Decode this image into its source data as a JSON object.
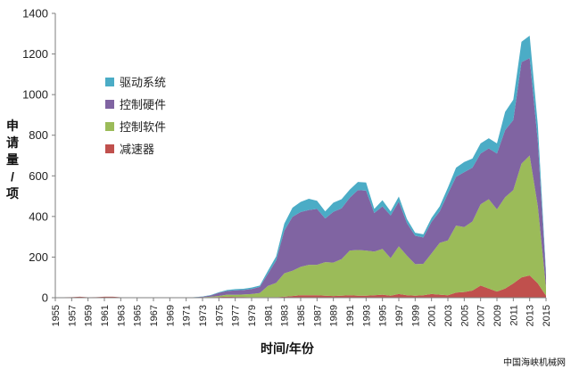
{
  "chart_data": {
    "type": "area",
    "stacked": true,
    "title": "",
    "xlabel": "时间/年份",
    "ylabel": "申请量/项",
    "ylim": [
      0,
      1400
    ],
    "yticks": [
      0,
      200,
      400,
      600,
      800,
      1000,
      1200,
      1400
    ],
    "xlim": [
      1955,
      2015
    ],
    "xticks": [
      1955,
      1957,
      1959,
      1961,
      1963,
      1965,
      1967,
      1969,
      1971,
      1973,
      1975,
      1977,
      1979,
      1981,
      1983,
      1985,
      1987,
      1989,
      1991,
      1993,
      1995,
      1997,
      1999,
      2001,
      2003,
      2005,
      2007,
      2009,
      2011,
      2013,
      2015
    ],
    "grid": false,
    "legend_position": "upper-left-inside",
    "x": [
      1955,
      1956,
      1957,
      1958,
      1959,
      1960,
      1961,
      1962,
      1963,
      1964,
      1965,
      1966,
      1967,
      1968,
      1969,
      1970,
      1971,
      1972,
      1973,
      1974,
      1975,
      1976,
      1977,
      1978,
      1979,
      1980,
      1981,
      1982,
      1983,
      1984,
      1985,
      1986,
      1987,
      1988,
      1989,
      1990,
      1991,
      1992,
      1993,
      1994,
      1995,
      1996,
      1997,
      1998,
      1999,
      2000,
      2001,
      2002,
      2003,
      2004,
      2005,
      2006,
      2007,
      2008,
      2009,
      2010,
      2011,
      2012,
      2013,
      2014,
      2015
    ],
    "series": [
      {
        "name": "减速器",
        "color": "#c0504d",
        "values": [
          0,
          2,
          3,
          5,
          2,
          3,
          5,
          5,
          2,
          1,
          1,
          1,
          1,
          1,
          1,
          0,
          0,
          1,
          2,
          3,
          4,
          5,
          4,
          4,
          3,
          3,
          3,
          3,
          5,
          8,
          12,
          12,
          12,
          10,
          8,
          10,
          12,
          10,
          10,
          12,
          15,
          10,
          18,
          12,
          10,
          12,
          18,
          15,
          12,
          25,
          28,
          35,
          60,
          45,
          30,
          45,
          70,
          100,
          110,
          70,
          10
        ]
      },
      {
        "name": "控制软件",
        "color": "#9bbb59",
        "values": [
          0,
          0,
          0,
          0,
          0,
          0,
          0,
          0,
          0,
          0,
          0,
          0,
          0,
          0,
          0,
          0,
          0,
          0,
          1,
          2,
          5,
          10,
          10,
          12,
          15,
          20,
          55,
          70,
          115,
          125,
          140,
          150,
          150,
          165,
          165,
          180,
          220,
          225,
          222,
          215,
          225,
          185,
          235,
          195,
          155,
          155,
          200,
          255,
          270,
          330,
          320,
          340,
          400,
          440,
          405,
          450,
          460,
          560,
          590,
          380,
          40
        ]
      },
      {
        "name": "控制硬件",
        "color": "#8064a2",
        "values": [
          0,
          0,
          0,
          0,
          0,
          0,
          0,
          0,
          0,
          0,
          0,
          0,
          0,
          0,
          0,
          0,
          0,
          1,
          2,
          6,
          15,
          18,
          22,
          22,
          25,
          30,
          60,
          110,
          210,
          265,
          270,
          270,
          275,
          215,
          250,
          250,
          260,
          295,
          295,
          190,
          210,
          210,
          220,
          160,
          140,
          130,
          155,
          155,
          230,
          240,
          270,
          265,
          250,
          250,
          275,
          330,
          345,
          500,
          480,
          320,
          60
        ]
      },
      {
        "name": "驱动系统",
        "color": "#4bacc6",
        "values": [
          0,
          0,
          0,
          0,
          0,
          0,
          0,
          0,
          0,
          0,
          0,
          0,
          0,
          0,
          0,
          0,
          0,
          1,
          1,
          2,
          3,
          5,
          6,
          6,
          7,
          7,
          15,
          20,
          35,
          45,
          50,
          55,
          40,
          35,
          45,
          45,
          40,
          40,
          40,
          20,
          30,
          20,
          25,
          20,
          15,
          15,
          20,
          25,
          30,
          45,
          50,
          45,
          50,
          50,
          50,
          90,
          100,
          100,
          110,
          80,
          15
        ]
      }
    ]
  },
  "watermark": "中国海峡机械网"
}
